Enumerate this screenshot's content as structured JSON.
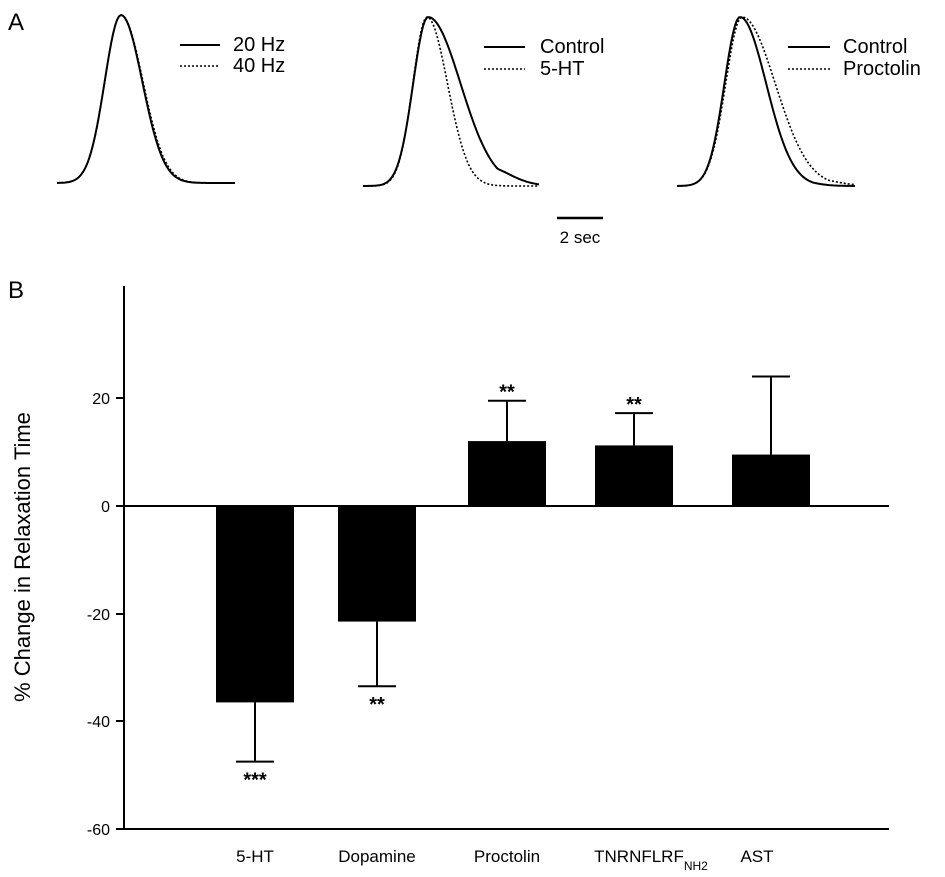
{
  "panel_a": {
    "label": "A",
    "traces": [
      {
        "legend": [
          {
            "name": "20 Hz",
            "style": "solid"
          },
          {
            "name": "40 Hz",
            "style": "dotted"
          }
        ]
      },
      {
        "legend": [
          {
            "name": "Control",
            "style": "solid"
          },
          {
            "name": "5-HT",
            "style": "dotted"
          }
        ]
      },
      {
        "legend": [
          {
            "name": "Control",
            "style": "solid"
          },
          {
            "name": "Proctolin",
            "style": "dotted"
          }
        ]
      }
    ],
    "scale_bar": {
      "label": "2 sec",
      "seconds": 2
    }
  },
  "panel_b": {
    "label": "B",
    "ylabel": "% Change in Relaxation Time",
    "tick_labels": [
      "20",
      "0",
      "-20",
      "-40",
      "-60"
    ],
    "category_labels": [
      {
        "main": "5-HT",
        "sub": ""
      },
      {
        "main": "Dopamine",
        "sub": ""
      },
      {
        "main": "Proctolin",
        "sub": ""
      },
      {
        "main": "TNRNFLRF",
        "sub": "NH2"
      },
      {
        "main": "AST",
        "sub": ""
      }
    ],
    "significance": [
      "***",
      "**",
      "**",
      "**",
      ""
    ]
  },
  "chart_data": {
    "type": "bar",
    "categories": [
      "5-HT",
      "Dopamine",
      "Proctolin",
      "TNRNFLRF NH2",
      "AST"
    ],
    "values": [
      -36.5,
      -21.5,
      12,
      11.2,
      9.5
    ],
    "errors": [
      11,
      12,
      7.5,
      6,
      14.5
    ],
    "ylabel": "% Change in Relaxation Time",
    "xlabel": "",
    "ylim": [
      -60,
      35
    ],
    "yticks": [
      20,
      0,
      -20,
      -40,
      -60
    ],
    "grid": false,
    "bar_color": "#000000"
  }
}
